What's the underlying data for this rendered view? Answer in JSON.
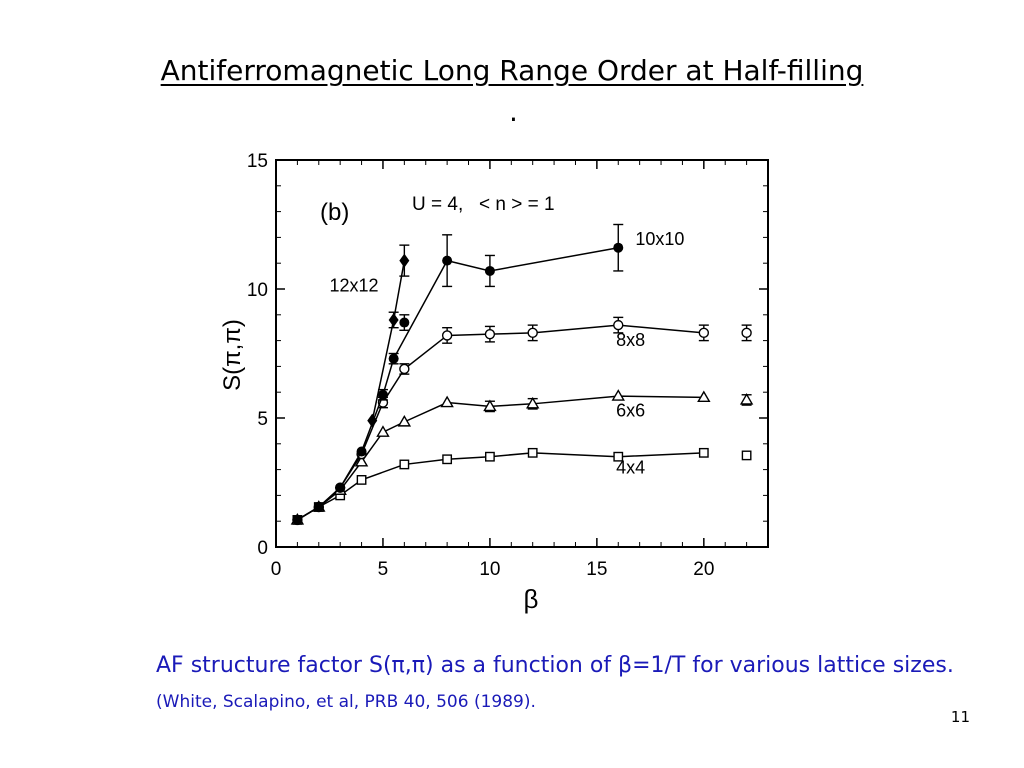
{
  "slide": {
    "title": "Antiferromagnetic Long Range Order at Half-filling",
    "title_dot": ".",
    "caption_main": "AF structure factor S(π,π) as a function of β=1/T  for various lattice sizes.",
    "caption_cite": "(White, Scalapino, et al, PRB 40, 506 (1989).",
    "page_number": "11",
    "caption_color": "#1a1ab8"
  },
  "chart_data": {
    "type": "scatter",
    "panel_label": "(b)",
    "annotation": "U = 4,   < n > = 1",
    "xlabel": "β",
    "ylabel": "S(π,π)",
    "xlim": [
      0,
      23
    ],
    "ylim": [
      0,
      15
    ],
    "x_ticks": [
      0,
      5,
      10,
      15,
      20
    ],
    "y_ticks": [
      0,
      5,
      10,
      15
    ],
    "grid": false,
    "series": [
      {
        "name": "4x4",
        "marker": "square",
        "x": [
          1,
          2,
          3,
          4,
          6,
          8,
          10,
          12,
          16,
          20,
          22
        ],
        "y": [
          1.05,
          1.55,
          2.0,
          2.6,
          3.2,
          3.4,
          3.5,
          3.65,
          3.5,
          3.65,
          3.55
        ],
        "err": [
          0,
          0,
          0,
          0,
          0,
          0,
          0,
          0,
          0,
          0,
          0
        ]
      },
      {
        "name": "6x6",
        "marker": "triangle",
        "x": [
          1,
          2,
          3,
          4,
          5,
          6,
          8,
          10,
          12,
          16,
          20,
          22
        ],
        "y": [
          1.05,
          1.55,
          2.2,
          3.3,
          4.45,
          4.85,
          5.6,
          5.45,
          5.55,
          5.85,
          5.8,
          5.7
        ],
        "err": [
          0,
          0,
          0,
          0,
          0,
          0,
          0,
          0.2,
          0.2,
          0,
          0,
          0.2
        ]
      },
      {
        "name": "8x8",
        "marker": "circle-open",
        "x": [
          1,
          2,
          3,
          4,
          5,
          6,
          8,
          10,
          12,
          16,
          20,
          22
        ],
        "y": [
          1.05,
          1.55,
          2.3,
          3.6,
          5.6,
          6.9,
          8.2,
          8.25,
          8.3,
          8.6,
          8.3,
          8.3
        ],
        "err": [
          0,
          0,
          0,
          0,
          0.2,
          0.2,
          0.3,
          0.3,
          0.3,
          0.3,
          0.3,
          0.3
        ]
      },
      {
        "name": "10x10",
        "marker": "circle-filled",
        "x": [
          1,
          2,
          3,
          4,
          5,
          5.5,
          8,
          10,
          16
        ],
        "y": [
          1.05,
          1.55,
          2.3,
          3.7,
          5.9,
          7.3,
          11.1,
          10.7,
          11.6
        ],
        "err": [
          0,
          0,
          0,
          0,
          0.2,
          0.2,
          1.0,
          0.6,
          0.9
        ]
      },
      {
        "name": "12x12",
        "marker": "diamond",
        "x": [
          4.5,
          5.5,
          6
        ],
        "y": [
          4.9,
          8.8,
          11.1
        ],
        "err": [
          0,
          0.3,
          0.6
        ]
      },
      {
        "name": "",
        "marker": "circle-filled",
        "x": [
          6
        ],
        "y": [
          8.7
        ],
        "err": [
          0.3
        ]
      }
    ]
  }
}
